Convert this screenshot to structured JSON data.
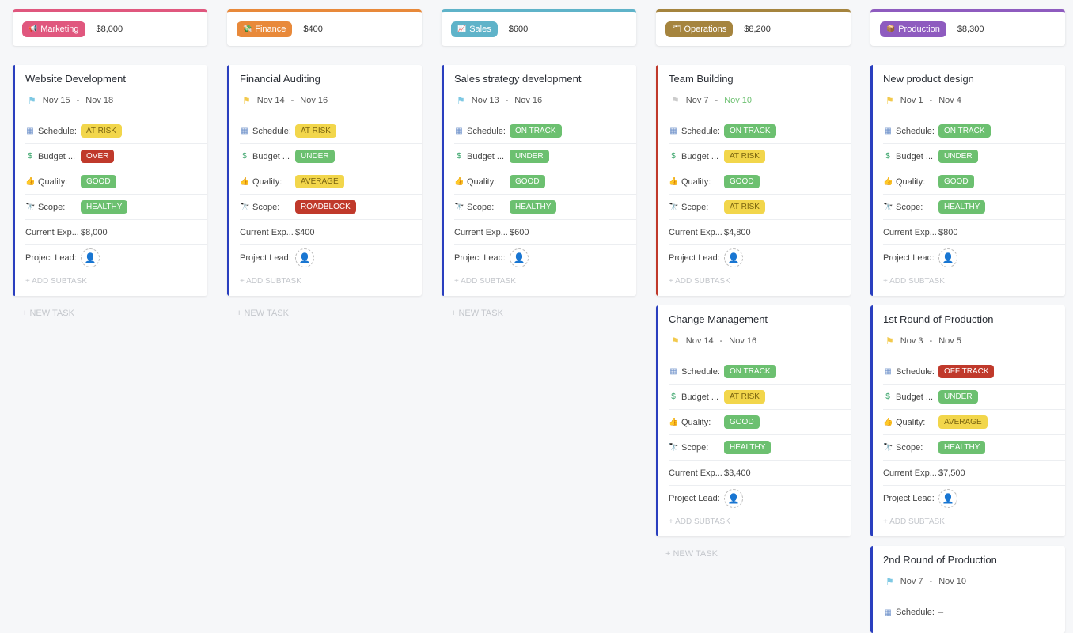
{
  "labels": {
    "schedule": "Schedule:",
    "budget": "Budget ...",
    "quality": "Quality:",
    "scope": "Scope:",
    "expense": "Current Exp...",
    "lead": "Project Lead:",
    "add_subtask": "+ ADD SUBTASK",
    "new_task": "+ NEW TASK"
  },
  "status_colors": {
    "AT RISK": "#f2d64b",
    "OVER": "#c0392b",
    "GOOD": "#6cc070",
    "HEALTHY": "#6cc070",
    "AVERAGE": "#f2d64b",
    "ROADBLOCK": "#c0392b",
    "ON TRACK": "#6cc070",
    "UNDER": "#6cc070",
    "OFF TRACK": "#c0392b"
  },
  "columns": [
    {
      "name": "Marketing",
      "icon": "megaphone-icon",
      "color": "#e0577e",
      "total": "$8,000",
      "new_task": true,
      "tasks": [
        {
          "title": "Website Development",
          "flag": "#7ec8e3",
          "start": "Nov 15",
          "end": "Nov 18",
          "schedule": "AT RISK",
          "budget": "OVER",
          "quality": "GOOD",
          "scope": "HEALTHY",
          "expense": "$8,000"
        }
      ]
    },
    {
      "name": "Finance",
      "icon": "money-icon",
      "color": "#e8893a",
      "total": "$400",
      "new_task": true,
      "tasks": [
        {
          "title": "Financial Auditing",
          "flag": "#f2c94c",
          "start": "Nov 14",
          "end": "Nov 16",
          "schedule": "AT RISK",
          "budget": "UNDER",
          "quality": "AVERAGE",
          "scope": "ROADBLOCK",
          "expense": "$400"
        }
      ]
    },
    {
      "name": "Sales",
      "icon": "chart-icon",
      "color": "#5fb3c9",
      "total": "$600",
      "new_task": true,
      "tasks": [
        {
          "title": "Sales strategy development",
          "flag": "#7ec8e3",
          "start": "Nov 13",
          "end": "Nov 16",
          "schedule": "ON TRACK",
          "budget": "UNDER",
          "quality": "GOOD",
          "scope": "HEALTHY",
          "expense": "$600"
        }
      ]
    },
    {
      "name": "Operations",
      "icon": "folder-icon",
      "color": "#a5843e",
      "total": "$8,200",
      "new_task": true,
      "tasks": [
        {
          "title": "Team Building",
          "flag": "#cccccc",
          "start": "Nov 7",
          "end": "Nov 10",
          "end_color": "#6cc070",
          "border": "#c0392b",
          "schedule": "ON TRACK",
          "budget": "AT RISK",
          "quality": "GOOD",
          "scope": "AT RISK",
          "expense": "$4,800"
        },
        {
          "title": "Change Management",
          "flag": "#f2c94c",
          "start": "Nov 14",
          "end": "Nov 16",
          "schedule": "ON TRACK",
          "budget": "AT RISK",
          "quality": "GOOD",
          "scope": "HEALTHY",
          "expense": "$3,400"
        }
      ]
    },
    {
      "name": "Production",
      "icon": "package-icon",
      "color": "#8e5bbf",
      "total": "$8,300",
      "new_task": false,
      "tasks": [
        {
          "title": "New product design",
          "flag": "#f2c94c",
          "start": "Nov 1",
          "end": "Nov 4",
          "schedule": "ON TRACK",
          "budget": "UNDER",
          "quality": "GOOD",
          "scope": "HEALTHY",
          "expense": "$800"
        },
        {
          "title": "1st Round of Production",
          "flag": "#f2c94c",
          "start": "Nov 3",
          "end": "Nov 5",
          "schedule": "OFF TRACK",
          "budget": "UNDER",
          "quality": "AVERAGE",
          "scope": "HEALTHY",
          "expense": "$7,500"
        },
        {
          "title": "2nd Round of Production",
          "flag": "#7ec8e3",
          "start": "Nov 7",
          "end": "Nov 10",
          "schedule": "–",
          "partial": true
        }
      ]
    }
  ]
}
